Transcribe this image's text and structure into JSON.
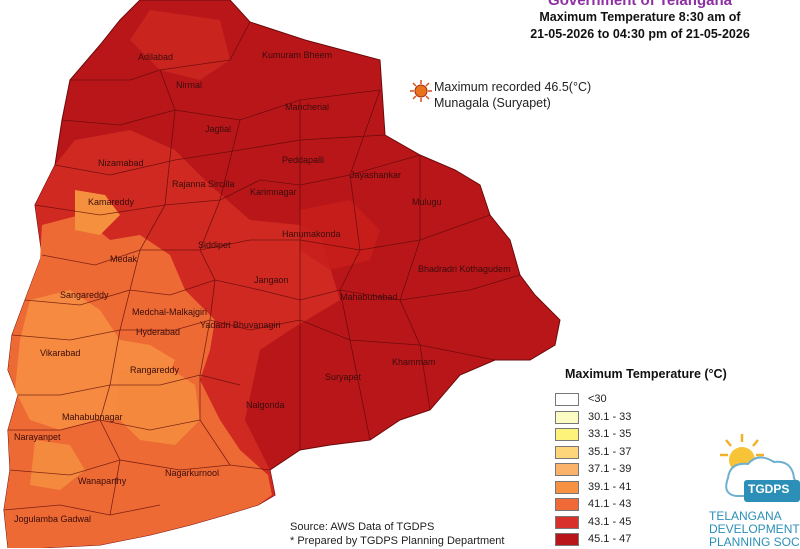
{
  "header": {
    "title": "Government of Telangana",
    "subtitle_line1": "Maximum Temperature 8:30 am of",
    "subtitle_line2": "21-05-2026 to 04:30 pm of 21-05-2026"
  },
  "max_recorded": {
    "line1": "Maximum recorded 46.5(°C)",
    "line2": "Munagala (Suryapet)",
    "marker_color": "#e8731c"
  },
  "legend": {
    "title": "Maximum Temperature (°C)",
    "items": [
      {
        "label": "<30",
        "color": "#ffffff"
      },
      {
        "label": "30.1 - 33",
        "color": "#fdfbc4"
      },
      {
        "label": "33.1 - 35",
        "color": "#fdf27a"
      },
      {
        "label": "35.1 - 37",
        "color": "#fdd57a"
      },
      {
        "label": "37.1 - 39",
        "color": "#fbb26a"
      },
      {
        "label": "39.1 - 41",
        "color": "#f79243"
      },
      {
        "label": "41.1 - 43",
        "color": "#ef6a36"
      },
      {
        "label": "43.1 - 45",
        "color": "#d8302b"
      },
      {
        "label": "45.1 - 47",
        "color": "#b9161a"
      }
    ]
  },
  "districts": [
    "Adilabad",
    "Kumuram Bheem",
    "Nirmal",
    "Mancherial",
    "Nizamabad",
    "Jagtial",
    "Peddapalli",
    "Kamareddy",
    "Rajanna Sircilla",
    "Karimnagar",
    "Jayashankar",
    "Siddipet",
    "Hanumakonda",
    "Mulugu",
    "Medak",
    "Sangareddy",
    "Jangaon",
    "Bhadradri Kothagudem",
    "Mahabubabad",
    "Medchal-Malkajgiri",
    "Hyderabad",
    "Yadadri Bhuvanagiri",
    "Vikarabad",
    "Rangareddy",
    "Khammam",
    "Suryapet",
    "Nalgonda",
    "Mahabubnagar",
    "Narayanpet",
    "Nagarkurnool",
    "Wanaparthy",
    "Jogulamba Gadwal"
  ],
  "source": {
    "line1": "Source: AWS Data of TGDPS",
    "line2": "* Prepared by TGDPS Planning Department"
  },
  "logo": {
    "acronym": "TGDPS",
    "org_line1": "TELANGANA",
    "org_line2": "DEVELOPMENT",
    "org_line3": "PLANNING SOC"
  }
}
